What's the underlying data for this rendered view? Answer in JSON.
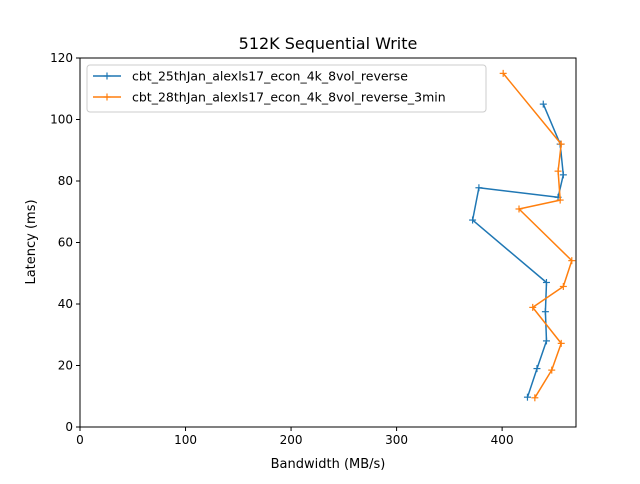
{
  "chart_data": {
    "type": "line",
    "title": "512K  Sequential Write",
    "xlabel": "Bandwidth (MB/s)",
    "ylabel": "Latency (ms)",
    "xlim": [
      0,
      470
    ],
    "ylim": [
      0,
      120
    ],
    "xticks": [
      0,
      100,
      200,
      300,
      400
    ],
    "yticks": [
      0,
      20,
      40,
      60,
      80,
      100,
      120
    ],
    "grid": false,
    "legend_position": "top-left",
    "marker": "+",
    "series": [
      {
        "name": "cbt_25thJan_alexls17_econ_4k_8vol_reverse",
        "color": "#1f77b4",
        "x": [
          424,
          433,
          442,
          441,
          442,
          372,
          378,
          453,
          458,
          455,
          439
        ],
        "y": [
          9.7,
          19.0,
          28.0,
          37.5,
          47.0,
          67.3,
          77.8,
          74.7,
          82.0,
          92.0,
          105.0
        ]
      },
      {
        "name": "cbt_28thJan_alexls17_econ_4k_8vol_reverse_3min",
        "color": "#ff7f0e",
        "x": [
          431,
          447,
          456,
          429,
          458,
          466,
          416,
          455,
          453,
          456,
          401
        ],
        "y": [
          9.5,
          18.5,
          27.2,
          38.9,
          45.7,
          54.1,
          70.9,
          73.8,
          83.2,
          92.0,
          115.0
        ]
      }
    ]
  }
}
